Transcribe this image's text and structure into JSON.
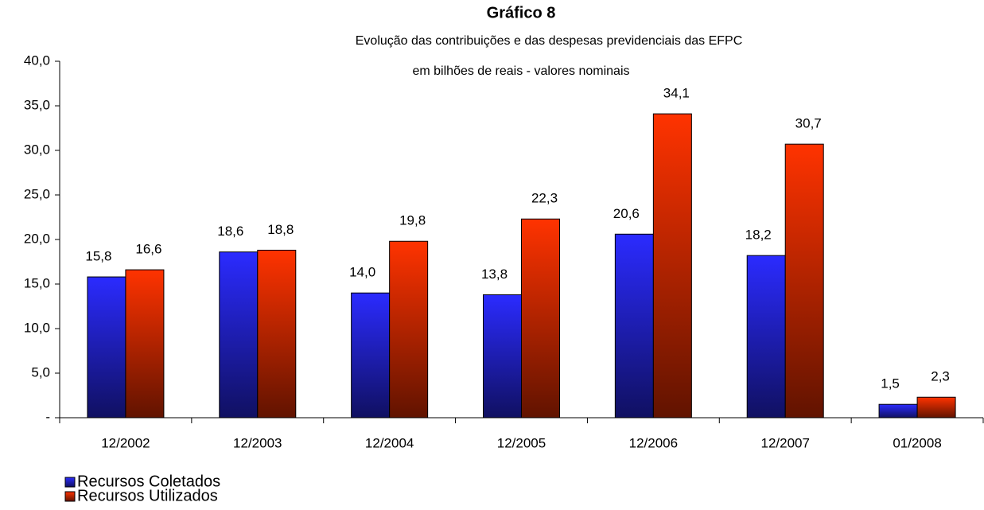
{
  "chart_data": {
    "type": "bar",
    "title": "Gráfico 8",
    "subtitle": "Evolução das contribuições e das despesas previdenciais das EFPC",
    "units": "em bilhões de reais - valores nominais",
    "categories": [
      "12/2002",
      "12/2003",
      "12/2004",
      "12/2005",
      "12/2006",
      "12/2007",
      "01/2008"
    ],
    "series": [
      {
        "name": "Recursos Coletados",
        "color": "#2b2bff",
        "values": [
          15.8,
          18.6,
          14.0,
          13.8,
          20.6,
          18.2,
          1.5
        ],
        "value_labels": [
          "15,8",
          "18,6",
          "14,0",
          "13,8",
          "20,6",
          "18,2",
          "1,5"
        ]
      },
      {
        "name": "Recursos Utilizados",
        "color": "#ff3300",
        "values": [
          16.6,
          18.8,
          19.8,
          22.3,
          34.1,
          30.7,
          2.3
        ],
        "value_labels": [
          "16,6",
          "18,8",
          "19,8",
          "22,3",
          "34,1",
          "30,7",
          "2,3"
        ]
      }
    ],
    "ylim": [
      0,
      40
    ],
    "yticks": [
      {
        "value": 0,
        "label": "-"
      },
      {
        "value": 5,
        "label": "5,0"
      },
      {
        "value": 10,
        "label": "10,0"
      },
      {
        "value": 15,
        "label": "15,0"
      },
      {
        "value": 20,
        "label": "20,0"
      },
      {
        "value": 25,
        "label": "25,0"
      },
      {
        "value": 30,
        "label": "30,0"
      },
      {
        "value": 35,
        "label": "35,0"
      },
      {
        "value": 40,
        "label": "40,0"
      }
    ],
    "grid": false,
    "legend": "bottom-left"
  }
}
